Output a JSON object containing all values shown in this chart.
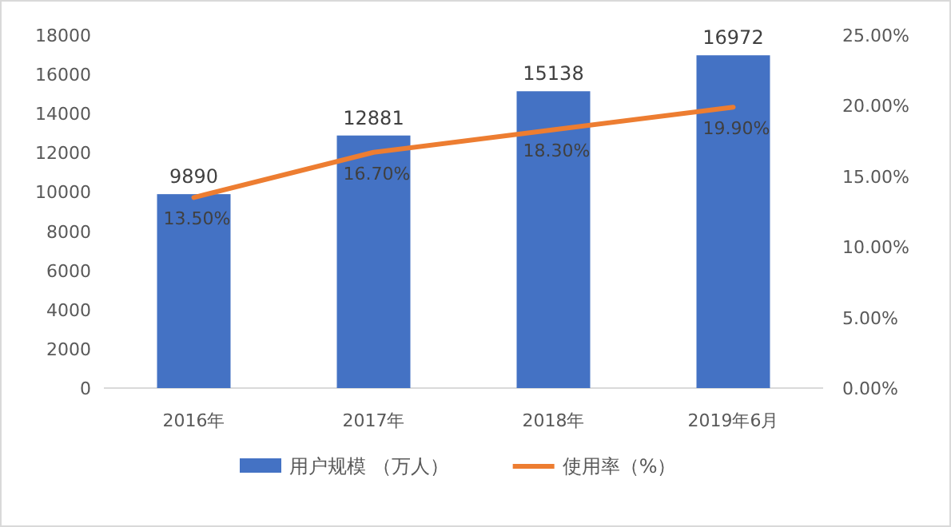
{
  "chart_data": {
    "type": "bar",
    "categories": [
      "2016年",
      "2017年",
      "2018年",
      "2019年6月"
    ],
    "series": [
      {
        "name": "用户规模 （万人）",
        "color": "#4472c4",
        "values": [
          9890,
          12881,
          15138,
          16972
        ],
        "value_labels": [
          "9890",
          "12881",
          "15138",
          "16972"
        ]
      },
      {
        "name": "使用率（%）",
        "type": "line",
        "axis": "y2",
        "color": "#ed7d31",
        "values": [
          13.5,
          16.7,
          18.3,
          19.9
        ],
        "value_labels": [
          "13.50%",
          "16.70%",
          "18.30%",
          "19.90%"
        ]
      }
    ],
    "ylim": [
      0,
      18000
    ],
    "yticks": [
      0,
      2000,
      4000,
      6000,
      8000,
      10000,
      12000,
      14000,
      16000,
      18000
    ],
    "y2lim": [
      0,
      25
    ],
    "y2ticks": [
      {
        "value": 0,
        "label": "0.00%"
      },
      {
        "value": 5,
        "label": "5.00%"
      },
      {
        "value": 10,
        "label": "10.00%"
      },
      {
        "value": 15,
        "label": "15.00%"
      },
      {
        "value": 20,
        "label": "20.00%"
      },
      {
        "value": 25,
        "label": "25.00%"
      }
    ],
    "legend": "bottom"
  }
}
